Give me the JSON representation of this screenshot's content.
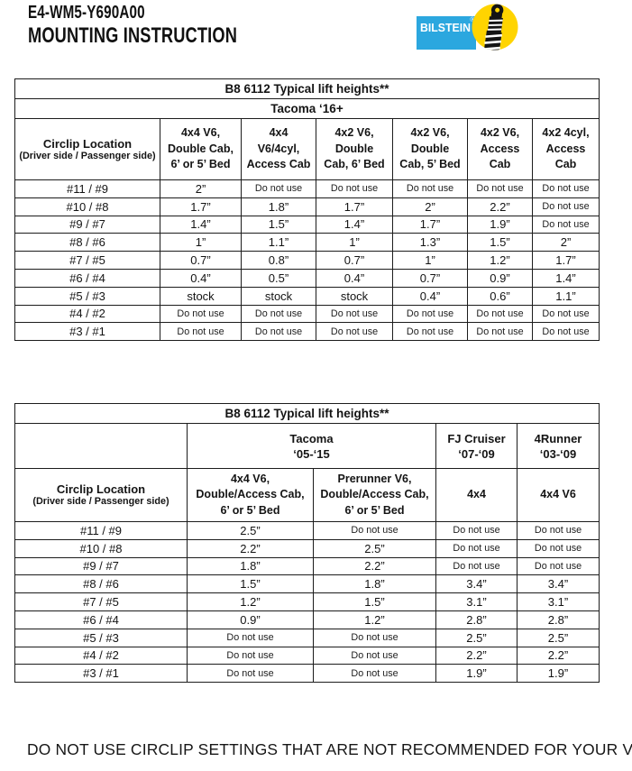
{
  "header": {
    "doc_code": "E4-WM5-Y690A00",
    "doc_title": "MOUNTING INSTRUCTION"
  },
  "logo": {
    "brand": "BILSTEIN",
    "registered": "®",
    "blue": "#2BA7DF",
    "yellow": "#FFD400"
  },
  "tables": [
    {
      "title": "B8 6112 Typical lift heights**",
      "group_row": {
        "leading_empty": false,
        "cells": [
          {
            "lines": [
              "Tacoma ‘16+"
            ],
            "span": 7
          }
        ]
      },
      "corner_header": {
        "line1": "Circlip Location",
        "line2": "(Driver side / Passenger side)"
      },
      "col_headers": [
        [
          "4x4 V6,",
          "Double Cab,",
          "6’ or 5’ Bed"
        ],
        [
          "4x4",
          "V6/4cyl,",
          "Access Cab"
        ],
        [
          "4x2 V6,",
          "Double",
          "Cab, 6’ Bed"
        ],
        [
          "4x2 V6,",
          "Double",
          "Cab, 5’ Bed"
        ],
        [
          "4x2 V6,",
          "Access",
          "Cab"
        ],
        [
          "4x2 4cyl,",
          "Access",
          "Cab"
        ]
      ],
      "rows": [
        {
          "label": "#11 / #9",
          "values": [
            "2”",
            "Do not use",
            "Do not use",
            "Do not use",
            "Do not use",
            "Do not use"
          ]
        },
        {
          "label": "#10 / #8",
          "values": [
            "1.7”",
            "1.8”",
            "1.7”",
            "2”",
            "2.2”",
            "Do not use"
          ]
        },
        {
          "label": "#9 / #7",
          "values": [
            "1.4”",
            "1.5”",
            "1.4”",
            "1.7”",
            "1.9”",
            "Do not use"
          ]
        },
        {
          "label": "#8 / #6",
          "values": [
            "1”",
            "1.1”",
            "1”",
            "1.3”",
            "1.5”",
            "2”"
          ]
        },
        {
          "label": "#7 / #5",
          "values": [
            "0.7”",
            "0.8”",
            "0.7”",
            "1”",
            "1.2”",
            "1.7”"
          ]
        },
        {
          "label": "#6 / #4",
          "values": [
            "0.4”",
            "0.5”",
            "0.4”",
            "0.7”",
            "0.9”",
            "1.4”"
          ]
        },
        {
          "label": "#5 / #3",
          "values": [
            "stock",
            "stock",
            "stock",
            "0.4”",
            "0.6”",
            "1.1”"
          ]
        },
        {
          "label": "#4 / #2",
          "values": [
            "Do not use",
            "Do not use",
            "Do not use",
            "Do not use",
            "Do not use",
            "Do not use"
          ]
        },
        {
          "label": "#3 / #1",
          "values": [
            "Do not use",
            "Do not use",
            "Do not use",
            "Do not use",
            "Do not use",
            "Do not use"
          ]
        }
      ]
    },
    {
      "title": "B8 6112 Typical lift heights**",
      "group_row": {
        "leading_empty": true,
        "cells": [
          {
            "lines": [
              "Tacoma",
              "‘05-‘15"
            ],
            "span": 2
          },
          {
            "lines": [
              "FJ Cruiser",
              "‘07-‘09"
            ],
            "span": 1
          },
          {
            "lines": [
              "4Runner",
              "‘03-‘09"
            ],
            "span": 1
          }
        ]
      },
      "corner_header": {
        "line1": "Circlip Location",
        "line2": "(Driver side / Passenger side)"
      },
      "col_headers": [
        [
          "4x4 V6,",
          "Double/Access Cab,",
          "6’ or 5’ Bed"
        ],
        [
          "Prerunner V6,",
          "Double/Access Cab,",
          "6’ or 5’ Bed"
        ],
        [
          "4x4"
        ],
        [
          "4x4 V6"
        ]
      ],
      "rows": [
        {
          "label": "#11 / #9",
          "values": [
            "2.5”",
            "Do not use",
            "Do not use",
            "Do not use"
          ]
        },
        {
          "label": "#10 / #8",
          "values": [
            "2.2”",
            "2.5”",
            "Do not use",
            "Do not use"
          ]
        },
        {
          "label": "#9 / #7",
          "values": [
            "1.8”",
            "2.2”",
            "Do not use",
            "Do not use"
          ]
        },
        {
          "label": "#8 / #6",
          "values": [
            "1.5”",
            "1.8”",
            "3.4”",
            "3.4”"
          ]
        },
        {
          "label": "#7 / #5",
          "values": [
            "1.2”",
            "1.5”",
            "3.1”",
            "3.1”"
          ]
        },
        {
          "label": "#6 / #4",
          "values": [
            "0.9”",
            "1.2”",
            "2.8”",
            "2.8”"
          ]
        },
        {
          "label": "#5 / #3",
          "values": [
            "Do not use",
            "Do not use",
            "2.5”",
            "2.5”"
          ]
        },
        {
          "label": "#4 / #2",
          "values": [
            "Do not use",
            "Do not use",
            "2.2”",
            "2.2”"
          ]
        },
        {
          "label": "#3 / #1",
          "values": [
            "Do not use",
            "Do not use",
            "1.9”",
            "1.9”"
          ]
        }
      ]
    }
  ],
  "footer": {
    "warning": "DO NOT USE CIRCLIP SETTINGS THAT ARE NOT RECOMMENDED FOR YOUR VEHICLE"
  }
}
